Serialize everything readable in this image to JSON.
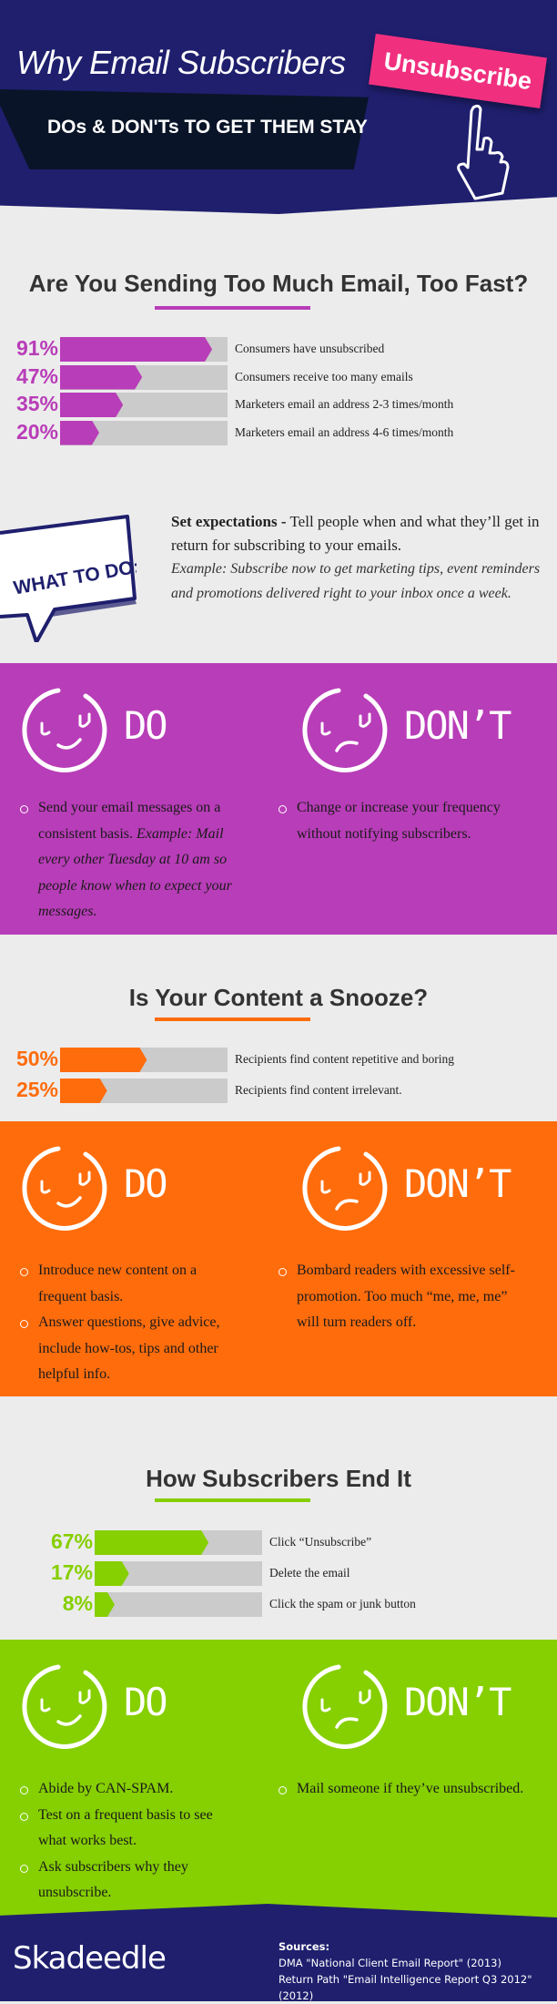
{
  "header": {
    "title": "Why Email Subscribers",
    "button_label": "Unsubscribe",
    "subtitle": "DOs & DON'Ts TO GET THEM STAY",
    "icon": "pointer-hand-icon"
  },
  "colors": {
    "navy": "#1f1f6e",
    "pink": "#f0307f",
    "purple": "#b83db8",
    "orange": "#ff6c0c",
    "green": "#86cf00",
    "gray": "#ececec"
  },
  "chart_data": [
    {
      "type": "bar",
      "title": "Are You Sending Too Much Email, Too Fast?",
      "categories": [
        "Consumers have unsubscribed",
        "Consumers receive too many emails",
        "Marketers email an address 2-3 times/month",
        "Marketers email an address 4-6 times/month"
      ],
      "values": [
        91,
        47,
        35,
        20
      ],
      "labels": [
        "91%",
        "47%",
        "35%",
        "20%"
      ],
      "ylim": [
        0,
        100
      ]
    },
    {
      "type": "bar",
      "title": "Is Your Content a Snooze?",
      "categories": [
        "Recipients find content repetitive and boring",
        "Recipients find content irrelevant."
      ],
      "values": [
        50,
        25
      ],
      "labels": [
        "50%",
        "25%"
      ],
      "ylim": [
        0,
        100
      ]
    },
    {
      "type": "bar",
      "title": "How Subscribers End It",
      "categories": [
        "Click “Unsubscribe”",
        "Delete the email",
        "Click the spam or junk button"
      ],
      "values": [
        67,
        17,
        8
      ],
      "labels": [
        "67%",
        "17%",
        "8%"
      ],
      "ylim": [
        0,
        100
      ]
    }
  ],
  "what_to_do": {
    "badge": "WHAT TO DO:",
    "bold": "Set expectations -",
    "text": " Tell people when and what they’ll get in return for subscribing to your emails.",
    "example": "Example: Subscribe now to get marketing tips, event reminders and promotions delivered right to your inbox once a week."
  },
  "dos": [
    {
      "do_label": "DO",
      "dont_label": "DON’T",
      "do_items": [
        {
          "text": "Send your email messages on a consistent basis. ",
          "italic": "Example: Mail every other Tuesday at 10 am so people know when to expect your messages."
        }
      ],
      "dont_items": [
        {
          "text": "Change or increase your frequency without notifying subscribers."
        }
      ]
    },
    {
      "do_label": "DO",
      "dont_label": "DON’T",
      "do_items": [
        {
          "text": "Introduce new content on a frequent basis."
        },
        {
          "text": "Answer questions, give advice, include how-tos, tips and other helpful info."
        }
      ],
      "dont_items": [
        {
          "text": "Bombard readers with excessive self-promotion. Too much “me, me, me” will turn readers off."
        }
      ]
    },
    {
      "do_label": "DO",
      "dont_label": "DON’T",
      "do_items": [
        {
          "text": "Abide by CAN-SPAM."
        },
        {
          "text": "Test on a frequent basis to see what works best."
        },
        {
          "text": "Ask subscribers why they unsubscribe."
        }
      ],
      "dont_items": [
        {
          "text": "Mail someone if they’ve unsubscribed."
        }
      ]
    }
  ],
  "footer": {
    "logo": "Skadeedle",
    "sources_title": "Sources:",
    "sources": [
      "DMA \"National Client Email Report\" (2013)",
      "Return Path \"Email Intelligence Report Q3 2012\" (2012)"
    ]
  }
}
